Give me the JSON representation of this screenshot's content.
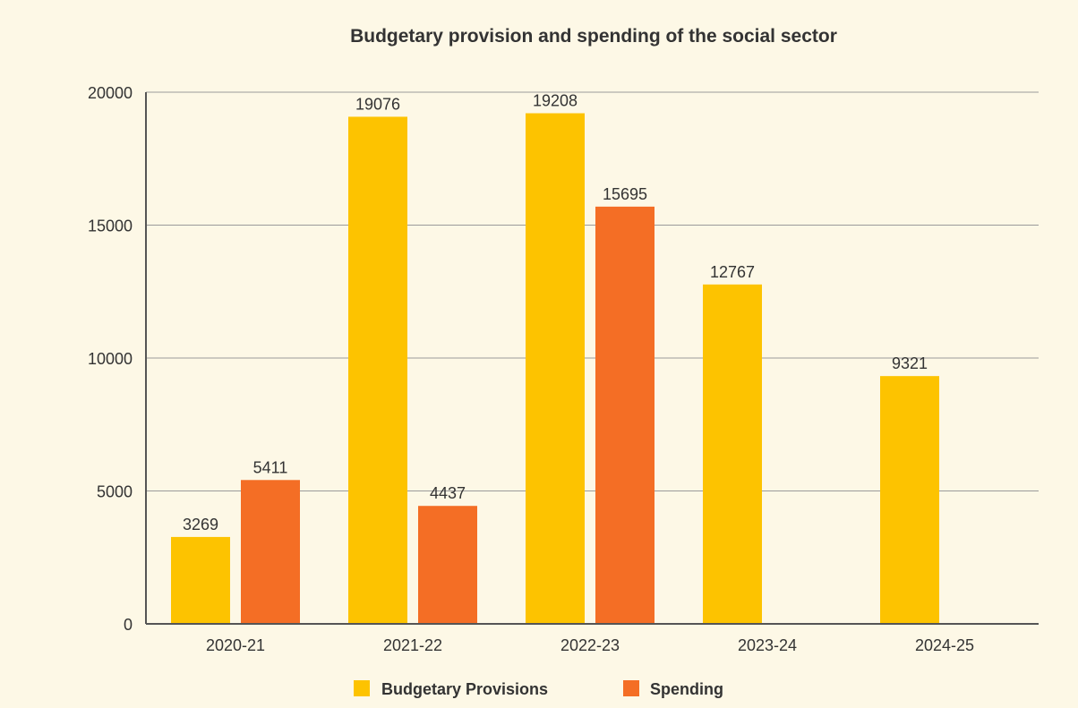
{
  "chart_data": {
    "type": "bar",
    "title": "Budgetary provision and spending of the social sector",
    "categories": [
      "2020-21",
      "2021-22",
      "2022-23",
      "2023-24",
      "2024-25"
    ],
    "series": [
      {
        "name": "Budgetary Provisions",
        "color": "#fdc300",
        "values": [
          3269,
          19076,
          19208,
          12767,
          9321
        ]
      },
      {
        "name": "Spending",
        "color": "#f46e25",
        "values": [
          5411,
          4437,
          15695,
          null,
          null
        ]
      }
    ],
    "ylim": [
      0,
      20000
    ],
    "yticks": [
      0,
      5000,
      10000,
      15000,
      20000
    ],
    "grid": true,
    "legend": "bottom-center",
    "data_labels": true
  }
}
